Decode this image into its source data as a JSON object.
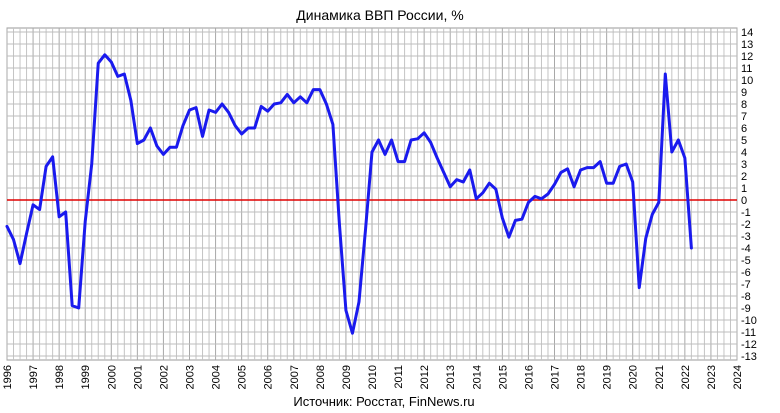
{
  "chart_data": {
    "type": "line",
    "title": "Динамика ВВП России, %",
    "source": "Источник: Росстат, FinNews.ru",
    "ylim": [
      -13,
      14
    ],
    "yticks": [
      14,
      13,
      12,
      11,
      10,
      9,
      8,
      7,
      6,
      5,
      4,
      3,
      2,
      1,
      0,
      -1,
      -2,
      -3,
      -4,
      -5,
      -6,
      -7,
      -8,
      -9,
      -10,
      -11,
      -12,
      -13
    ],
    "xlim": [
      1996,
      2024
    ],
    "xticks": [
      "1996",
      "1997",
      "1998",
      "1999",
      "2000",
      "2001",
      "2002",
      "2003",
      "2004",
      "2005",
      "2006",
      "2007",
      "2008",
      "2009",
      "2010",
      "2011",
      "2012",
      "2013",
      "2014",
      "2015",
      "2016",
      "2017",
      "2018",
      "2019",
      "2020",
      "2021",
      "2022",
      "2023",
      "2024"
    ],
    "grid": true,
    "reference_line": {
      "y": 0,
      "color": "#e00000"
    },
    "series": [
      {
        "color": "#1a1aee",
        "points": [
          [
            1996.0,
            -2.2
          ],
          [
            1996.25,
            -3.3
          ],
          [
            1996.5,
            -5.3
          ],
          [
            1996.75,
            -2.8
          ],
          [
            1997.0,
            -0.4
          ],
          [
            1997.25,
            -0.8
          ],
          [
            1997.5,
            2.8
          ],
          [
            1997.75,
            3.6
          ],
          [
            1998.0,
            -1.4
          ],
          [
            1998.25,
            -1.0
          ],
          [
            1998.5,
            -8.8
          ],
          [
            1998.75,
            -9.0
          ],
          [
            1999.0,
            -1.8
          ],
          [
            1999.25,
            3.0
          ],
          [
            1999.5,
            11.4
          ],
          [
            1999.75,
            12.1
          ],
          [
            2000.0,
            11.5
          ],
          [
            2000.25,
            10.3
          ],
          [
            2000.5,
            10.5
          ],
          [
            2000.75,
            8.3
          ],
          [
            2001.0,
            4.7
          ],
          [
            2001.25,
            5.0
          ],
          [
            2001.5,
            6.0
          ],
          [
            2001.75,
            4.5
          ],
          [
            2002.0,
            3.8
          ],
          [
            2002.25,
            4.4
          ],
          [
            2002.5,
            4.4
          ],
          [
            2002.75,
            6.2
          ],
          [
            2003.0,
            7.5
          ],
          [
            2003.25,
            7.7
          ],
          [
            2003.5,
            5.3
          ],
          [
            2003.75,
            7.5
          ],
          [
            2004.0,
            7.3
          ],
          [
            2004.25,
            8.0
          ],
          [
            2004.5,
            7.3
          ],
          [
            2004.75,
            6.2
          ],
          [
            2005.0,
            5.5
          ],
          [
            2005.25,
            6.0
          ],
          [
            2005.5,
            6.0
          ],
          [
            2005.75,
            7.8
          ],
          [
            2006.0,
            7.4
          ],
          [
            2006.25,
            8.0
          ],
          [
            2006.5,
            8.1
          ],
          [
            2006.75,
            8.8
          ],
          [
            2007.0,
            8.1
          ],
          [
            2007.25,
            8.6
          ],
          [
            2007.5,
            8.1
          ],
          [
            2007.75,
            9.2
          ],
          [
            2008.0,
            9.2
          ],
          [
            2008.25,
            8.0
          ],
          [
            2008.5,
            6.3
          ],
          [
            2008.75,
            -2.0
          ],
          [
            2009.0,
            -9.2
          ],
          [
            2009.25,
            -11.1
          ],
          [
            2009.5,
            -8.5
          ],
          [
            2009.75,
            -2.5
          ],
          [
            2010.0,
            4.0
          ],
          [
            2010.25,
            5.0
          ],
          [
            2010.5,
            3.8
          ],
          [
            2010.75,
            5.0
          ],
          [
            2011.0,
            3.2
          ],
          [
            2011.25,
            3.2
          ],
          [
            2011.5,
            5.0
          ],
          [
            2011.75,
            5.1
          ],
          [
            2012.0,
            5.6
          ],
          [
            2012.25,
            4.8
          ],
          [
            2012.5,
            3.5
          ],
          [
            2012.75,
            2.3
          ],
          [
            2013.0,
            1.1
          ],
          [
            2013.25,
            1.7
          ],
          [
            2013.5,
            1.5
          ],
          [
            2013.75,
            2.5
          ],
          [
            2014.0,
            0.1
          ],
          [
            2014.25,
            0.6
          ],
          [
            2014.5,
            1.4
          ],
          [
            2014.75,
            0.9
          ],
          [
            2015.0,
            -1.5
          ],
          [
            2015.25,
            -3.1
          ],
          [
            2015.5,
            -1.7
          ],
          [
            2015.75,
            -1.6
          ],
          [
            2016.0,
            -0.2
          ],
          [
            2016.25,
            0.3
          ],
          [
            2016.5,
            0.1
          ],
          [
            2016.75,
            0.5
          ],
          [
            2017.0,
            1.3
          ],
          [
            2017.25,
            2.3
          ],
          [
            2017.5,
            2.6
          ],
          [
            2017.75,
            1.1
          ],
          [
            2018.0,
            2.5
          ],
          [
            2018.25,
            2.7
          ],
          [
            2018.5,
            2.7
          ],
          [
            2018.75,
            3.2
          ],
          [
            2019.0,
            1.4
          ],
          [
            2019.25,
            1.4
          ],
          [
            2019.5,
            2.8
          ],
          [
            2019.75,
            3.0
          ],
          [
            2020.0,
            1.5
          ],
          [
            2020.25,
            -7.3
          ],
          [
            2020.5,
            -3.2
          ],
          [
            2020.75,
            -1.2
          ],
          [
            2021.0,
            -0.2
          ],
          [
            2021.25,
            10.5
          ],
          [
            2021.5,
            4.0
          ],
          [
            2021.75,
            5.0
          ],
          [
            2022.0,
            3.5
          ],
          [
            2022.25,
            -4.0
          ]
        ]
      }
    ]
  }
}
